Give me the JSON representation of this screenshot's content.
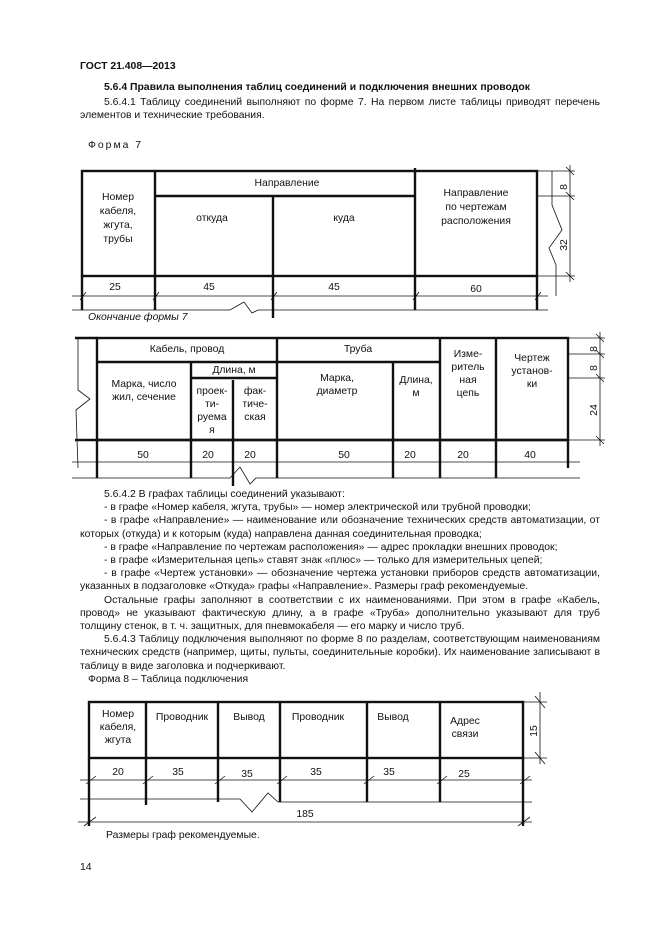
{
  "header": {
    "standard": "ГОСТ 21.408—2013"
  },
  "section": {
    "title": "5.6.4 Правила выполнения таблиц соединений и подключения внешних проводок",
    "p1": "5.6.4.1 Таблицу соединений выполняют по форме 7. На первом листе таблицы приводят перечень элементов и технические требования."
  },
  "form7": {
    "caption": "Форма 7",
    "col_number": [
      "Номер",
      "кабеля,",
      "жгута,",
      "трубы"
    ],
    "direction": "Направление",
    "from": "откуда",
    "to": "куда",
    "dir_drawings": [
      "Направление",
      "по чертежам",
      "расположения"
    ],
    "widths": [
      "25",
      "45",
      "45",
      "60"
    ],
    "heights": [
      "8",
      "32"
    ]
  },
  "form7_end": {
    "caption": "Окончание формы 7",
    "cable": "Кабель, провод",
    "length": "Длина, м",
    "brand": [
      "Марка, число",
      "жил, сечение"
    ],
    "designed": [
      "проек-",
      "ти-",
      "руема",
      "я"
    ],
    "actual": [
      "фак-",
      "тиче-",
      "ская"
    ],
    "pipe": "Труба",
    "pipe_brand": [
      "Марка,",
      "диаметр"
    ],
    "pipe_length": [
      "Длина,",
      "м"
    ],
    "meas": [
      "Изме-",
      "ритель",
      "ная",
      "цепь"
    ],
    "install": [
      "Чертеж",
      "установ-",
      "ки"
    ],
    "widths": [
      "50",
      "20",
      "20",
      "50",
      "20",
      "20",
      "40"
    ],
    "heights": [
      "8",
      "8",
      "24"
    ]
  },
  "paragraphs": [
    "5.6.4.2 В графах таблицы соединений указывают:",
    "- в графе «Номер кабеля, жгута, трубы» — номер электрической или трубной проводки;",
    "- в графе «Направление» — наименование или обозначение технических средств автоматизации, от которых (откуда) и к которым (куда) направлена данная соединительная проводка;",
    "- в графе «Направление по чертежам расположения» — адрес прокладки внешних проводок;",
    "- в графе «Измерительная цепь» ставят знак «плюс» — только для измерительных цепей;",
    "- в графе «Чертеж установки» — обозначение чертежа установки приборов средств автоматизации, указанных в подзаголовке «Откуда» графы «Направление». Размеры граф рекомендуемые.",
    "Остальные графы заполняют в соответствии с их наименованиями. При этом в графе «Кабель, провод» не указывают фактическую длину, а в графе «Труба» дополнительно указывают для труб толщину стенок, в т. ч. защитных, для пневмокабеля — его марку и число труб.",
    "5.6.4.3 Таблицу подключения выполняют по форме 8 по разделам, соответствующим наименованиям технических средств (например, щиты, пульты, соединительные коробки). Их наименование записывают в таблицу в виде заголовка и подчеркивают."
  ],
  "form8": {
    "caption": "Форма 8 – Таблица подключения",
    "col_number": [
      "Номер",
      "кабеля,",
      "жгута"
    ],
    "conductor1": "Проводник",
    "terminal1": "Вывод",
    "conductor2": "Проводник",
    "terminal2": "Вывод",
    "address": [
      "Адрес",
      "связи"
    ],
    "widths": [
      "20",
      "35",
      "35",
      "35",
      "35",
      "25"
    ],
    "total": "185",
    "height": "15",
    "note": "Размеры граф рекомендуемые."
  },
  "page_number": "14"
}
